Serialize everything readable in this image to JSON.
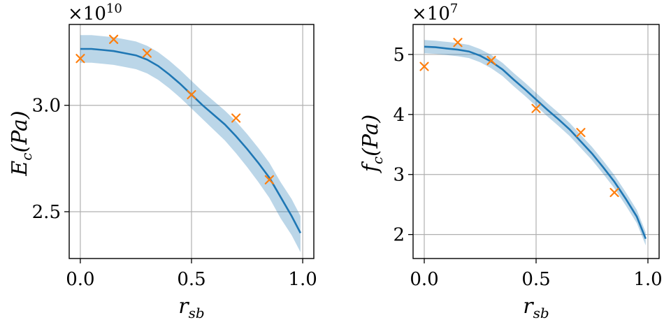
{
  "chart_data": [
    {
      "type": "line",
      "title": "",
      "multiplier": {
        "base": "×10",
        "exponent": "10"
      },
      "xlabel": {
        "main": "r",
        "sub": "sb"
      },
      "ylabel": {
        "main": "E",
        "sub": "c",
        "rest": "(Pa)"
      },
      "xlim": [
        -0.05,
        1.05
      ],
      "ylim": [
        2.28,
        3.38
      ],
      "xticks": [
        0.0,
        0.5,
        1.0
      ],
      "xtick_labels": [
        "0.0",
        "0.5",
        "1.0"
      ],
      "yticks": [
        2.5,
        3.0
      ],
      "ytick_labels": [
        "2.5",
        "3.0"
      ],
      "grid": true,
      "series": [
        {
          "kind": "line_with_band",
          "color": "#1f77b4",
          "x": [
            0.0,
            0.05,
            0.1,
            0.15,
            0.2,
            0.25,
            0.3,
            0.35,
            0.4,
            0.45,
            0.5,
            0.55,
            0.6,
            0.65,
            0.7,
            0.75,
            0.8,
            0.85,
            0.9,
            0.95,
            0.99
          ],
          "mean": [
            3.265,
            3.265,
            3.26,
            3.255,
            3.245,
            3.235,
            3.215,
            3.185,
            3.145,
            3.1,
            3.05,
            3.0,
            2.955,
            2.91,
            2.855,
            2.795,
            2.73,
            2.66,
            2.57,
            2.48,
            2.4
          ],
          "lower": [
            3.2,
            3.2,
            3.195,
            3.19,
            3.18,
            3.17,
            3.15,
            3.12,
            3.08,
            3.035,
            2.985,
            2.935,
            2.885,
            2.835,
            2.775,
            2.71,
            2.64,
            2.565,
            2.47,
            2.39,
            2.31
          ],
          "upper": [
            3.33,
            3.33,
            3.325,
            3.32,
            3.31,
            3.3,
            3.28,
            3.25,
            3.21,
            3.165,
            3.115,
            3.065,
            3.02,
            2.975,
            2.925,
            2.865,
            2.8,
            2.73,
            2.64,
            2.56,
            2.48
          ]
        },
        {
          "kind": "scatter",
          "marker": "x",
          "color": "#ff7f0e",
          "x": [
            0.0,
            0.15,
            0.3,
            0.5,
            0.7,
            0.85
          ],
          "y": [
            3.22,
            3.31,
            3.245,
            3.05,
            2.94,
            2.65
          ]
        }
      ]
    },
    {
      "type": "line",
      "title": "",
      "multiplier": {
        "base": "×10",
        "exponent": "7"
      },
      "xlabel": {
        "main": "r",
        "sub": "sb"
      },
      "ylabel": {
        "main": "f",
        "sub": "c",
        "rest": "(Pa)"
      },
      "xlim": [
        -0.05,
        1.05
      ],
      "ylim": [
        1.6,
        5.5
      ],
      "xticks": [
        0.0,
        0.5,
        1.0
      ],
      "xtick_labels": [
        "0.0",
        "0.5",
        "1.0"
      ],
      "yticks": [
        2,
        3,
        4,
        5
      ],
      "ytick_labels": [
        "2",
        "3",
        "4",
        "5"
      ],
      "grid": true,
      "series": [
        {
          "kind": "line_with_band",
          "color": "#1f77b4",
          "x": [
            0.0,
            0.05,
            0.1,
            0.15,
            0.2,
            0.25,
            0.3,
            0.35,
            0.4,
            0.45,
            0.5,
            0.55,
            0.6,
            0.65,
            0.7,
            0.75,
            0.8,
            0.85,
            0.9,
            0.95,
            0.99
          ],
          "mean": [
            5.13,
            5.12,
            5.1,
            5.08,
            5.05,
            4.98,
            4.88,
            4.75,
            4.58,
            4.42,
            4.25,
            4.08,
            3.92,
            3.75,
            3.55,
            3.35,
            3.12,
            2.88,
            2.6,
            2.3,
            1.93
          ],
          "lower": [
            5.02,
            5.01,
            4.99,
            4.97,
            4.94,
            4.87,
            4.77,
            4.64,
            4.47,
            4.31,
            4.14,
            3.97,
            3.81,
            3.64,
            3.44,
            3.24,
            3.01,
            2.77,
            2.49,
            2.19,
            1.82
          ],
          "upper": [
            5.24,
            5.23,
            5.21,
            5.19,
            5.16,
            5.09,
            4.99,
            4.86,
            4.69,
            4.53,
            4.36,
            4.19,
            4.03,
            3.86,
            3.66,
            3.46,
            3.23,
            2.99,
            2.71,
            2.41,
            2.04
          ]
        },
        {
          "kind": "scatter",
          "marker": "x",
          "color": "#ff7f0e",
          "x": [
            0.0,
            0.15,
            0.3,
            0.5,
            0.7,
            0.85
          ],
          "y": [
            4.8,
            5.2,
            4.9,
            4.1,
            3.7,
            2.7
          ]
        }
      ]
    }
  ]
}
